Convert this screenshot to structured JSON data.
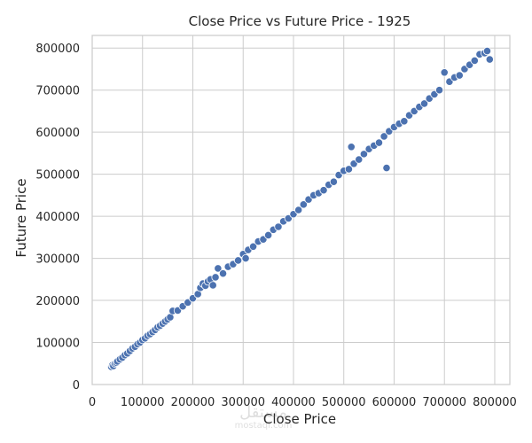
{
  "chart_data": {
    "type": "scatter",
    "title": "Close Price vs Future Price - 1925",
    "xlabel": "Close Price",
    "ylabel": "Future Price",
    "xlim": [
      0,
      830000
    ],
    "ylim": [
      0,
      830000
    ],
    "x_ticks": [
      0,
      100000,
      200000,
      300000,
      400000,
      500000,
      600000,
      700000,
      800000
    ],
    "x_tick_labels": [
      "0",
      "100000",
      "200000",
      "300000",
      "400000",
      "500000",
      "600000",
      "700000",
      "800000"
    ],
    "y_ticks": [
      0,
      100000,
      200000,
      300000,
      400000,
      500000,
      600000,
      700000,
      800000
    ],
    "y_tick_labels": [
      "0",
      "100000",
      "200000",
      "300000",
      "400000",
      "500000",
      "600000",
      "700000",
      "800000"
    ],
    "grid": true,
    "marker_color": "#4c72b0",
    "marker_edge": "#ffffff",
    "series": [
      {
        "points": [
          [
            38000,
            42000
          ],
          [
            40000,
            46000
          ],
          [
            42000,
            44000
          ],
          [
            45000,
            50000
          ],
          [
            48000,
            52000
          ],
          [
            50000,
            55000
          ],
          [
            55000,
            60000
          ],
          [
            60000,
            64000
          ],
          [
            65000,
            70000
          ],
          [
            70000,
            74000
          ],
          [
            75000,
            80000
          ],
          [
            80000,
            86000
          ],
          [
            85000,
            90000
          ],
          [
            90000,
            96000
          ],
          [
            95000,
            100000
          ],
          [
            100000,
            106000
          ],
          [
            105000,
            110000
          ],
          [
            110000,
            116000
          ],
          [
            115000,
            120000
          ],
          [
            120000,
            125000
          ],
          [
            125000,
            130000
          ],
          [
            130000,
            136000
          ],
          [
            135000,
            140000
          ],
          [
            140000,
            145000
          ],
          [
            145000,
            150000
          ],
          [
            150000,
            155000
          ],
          [
            155000,
            160000
          ],
          [
            160000,
            175000
          ],
          [
            170000,
            176000
          ],
          [
            180000,
            186000
          ],
          [
            190000,
            195000
          ],
          [
            200000,
            205000
          ],
          [
            210000,
            215000
          ],
          [
            215000,
            230000
          ],
          [
            220000,
            240000
          ],
          [
            225000,
            235000
          ],
          [
            230000,
            245000
          ],
          [
            235000,
            250000
          ],
          [
            240000,
            236000
          ],
          [
            245000,
            255000
          ],
          [
            250000,
            276000
          ],
          [
            260000,
            264000
          ],
          [
            270000,
            280000
          ],
          [
            280000,
            286000
          ],
          [
            290000,
            295000
          ],
          [
            300000,
            310000
          ],
          [
            305000,
            300000
          ],
          [
            310000,
            320000
          ],
          [
            320000,
            328000
          ],
          [
            330000,
            340000
          ],
          [
            340000,
            345000
          ],
          [
            350000,
            355000
          ],
          [
            360000,
            368000
          ],
          [
            370000,
            375000
          ],
          [
            380000,
            388000
          ],
          [
            390000,
            395000
          ],
          [
            400000,
            405000
          ],
          [
            410000,
            415000
          ],
          [
            420000,
            428000
          ],
          [
            430000,
            440000
          ],
          [
            440000,
            450000
          ],
          [
            450000,
            455000
          ],
          [
            460000,
            462000
          ],
          [
            470000,
            475000
          ],
          [
            480000,
            482000
          ],
          [
            490000,
            498000
          ],
          [
            500000,
            508000
          ],
          [
            510000,
            512000
          ],
          [
            515000,
            565000
          ],
          [
            520000,
            525000
          ],
          [
            530000,
            535000
          ],
          [
            540000,
            548000
          ],
          [
            550000,
            560000
          ],
          [
            560000,
            568000
          ],
          [
            570000,
            575000
          ],
          [
            580000,
            590000
          ],
          [
            585000,
            515000
          ],
          [
            590000,
            602000
          ],
          [
            600000,
            612000
          ],
          [
            610000,
            620000
          ],
          [
            620000,
            626000
          ],
          [
            630000,
            640000
          ],
          [
            640000,
            650000
          ],
          [
            650000,
            660000
          ],
          [
            660000,
            668000
          ],
          [
            670000,
            680000
          ],
          [
            680000,
            690000
          ],
          [
            690000,
            700000
          ],
          [
            700000,
            742000
          ],
          [
            710000,
            720000
          ],
          [
            720000,
            730000
          ],
          [
            730000,
            735000
          ],
          [
            740000,
            750000
          ],
          [
            750000,
            760000
          ],
          [
            760000,
            770000
          ],
          [
            770000,
            785000
          ],
          [
            780000,
            788000
          ],
          [
            785000,
            793000
          ],
          [
            790000,
            773000
          ]
        ]
      }
    ]
  },
  "watermark": {
    "logo_text": "مستقل",
    "domain_text": "mostaql.com"
  }
}
